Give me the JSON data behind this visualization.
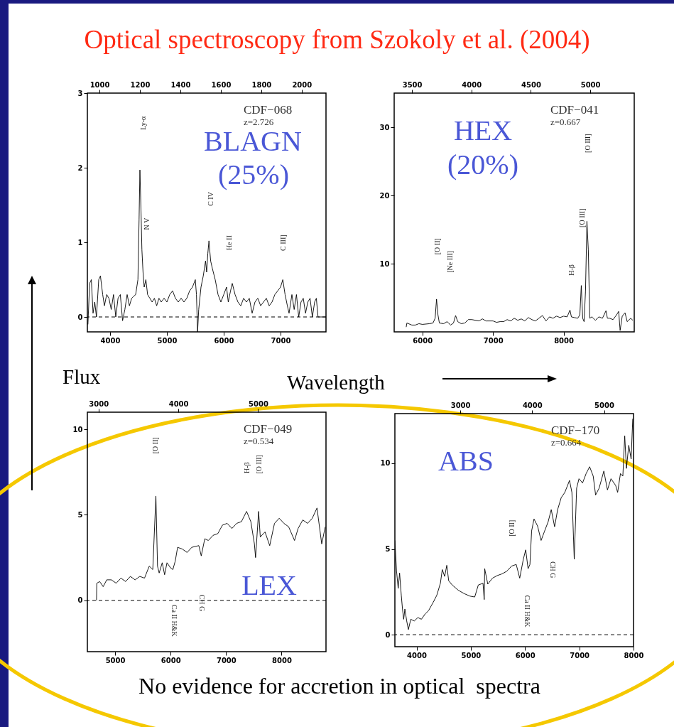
{
  "chart_data": [
    {
      "type": "line",
      "title": "Optical spectroscopy from Szokoly et al. (2004)",
      "xlabel": "Wavelength",
      "ylabel": "Flux",
      "color": "#000000",
      "x": [
        3610,
        3640,
        3670,
        3700,
        3730,
        3760,
        3800,
        3830,
        3870,
        3900,
        3940,
        3980,
        4020,
        4060,
        4100,
        4140,
        4180,
        4220,
        4260,
        4300,
        4340,
        4380,
        4420,
        4450,
        4490,
        4510,
        4525,
        4545,
        4560,
        4580,
        4600,
        4630,
        4660,
        4700,
        4740,
        4780,
        4820,
        4860,
        4900,
        4950,
        5000,
        5050,
        5100,
        5150,
        5200,
        5250,
        5300,
        5350,
        5400,
        5450,
        5500,
        5520,
        5540,
        5560,
        5600,
        5640,
        5680,
        5700,
        5720,
        5740,
        5770,
        5800,
        5850,
        5900,
        5950,
        6000,
        6050,
        6080,
        6120,
        6150,
        6200,
        6250,
        6300,
        6350,
        6400,
        6450,
        6500,
        6550,
        6600,
        6650,
        6700,
        6750,
        6800,
        6850,
        6900,
        6950,
        7000,
        7040,
        7080,
        7120,
        7150,
        7200,
        7240,
        7280,
        7320,
        7360,
        7400,
        7440,
        7480,
        7520,
        7560,
        7600,
        7630,
        7660,
        7700,
        7800
      ],
      "values": [
        -0.1,
        0.45,
        0.5,
        0.05,
        0.2,
        0.0,
        0.5,
        0.55,
        0.3,
        0.15,
        0.3,
        0.25,
        0.1,
        0.3,
        0.0,
        0.25,
        0.3,
        -0.05,
        0.1,
        0.3,
        0.15,
        0.25,
        0.28,
        0.3,
        0.5,
        1.3,
        1.97,
        1.4,
        0.9,
        0.6,
        0.4,
        0.5,
        0.3,
        0.25,
        0.2,
        0.25,
        0.15,
        0.25,
        0.2,
        0.25,
        0.2,
        0.3,
        0.35,
        0.25,
        0.2,
        0.25,
        0.2,
        0.25,
        0.35,
        0.4,
        0.5,
        0.3,
        -0.2,
        0.1,
        0.4,
        0.55,
        0.75,
        0.6,
        0.85,
        1.02,
        0.75,
        0.65,
        0.5,
        0.3,
        0.2,
        0.3,
        0.4,
        0.2,
        0.35,
        0.45,
        0.3,
        0.2,
        0.15,
        0.25,
        0.2,
        0.25,
        0.05,
        0.2,
        0.25,
        0.15,
        0.2,
        0.25,
        0.15,
        0.2,
        0.3,
        0.35,
        0.4,
        0.5,
        0.3,
        0.15,
        0.05,
        0.3,
        0.1,
        0.3,
        0.0,
        0.2,
        0.25,
        0.05,
        0.2,
        0.25,
        0.0,
        0.2,
        0.25,
        0.0,
        0.0,
        0.0
      ],
      "xlim": [
        3600,
        7800
      ],
      "xticks": [
        4000,
        5000,
        6000,
        7000
      ],
      "x2lim": [
        940,
        2120
      ],
      "x2ticks": [
        1000,
        1200,
        1400,
        1600,
        1800,
        2000
      ],
      "ylim": [
        -0.2,
        3
      ],
      "yticks": [
        0,
        1,
        2,
        3
      ],
      "ref_lines": [
        {
          "axis": "y",
          "value": 0,
          "line_style": "dashed"
        }
      ],
      "annotations": [
        "CDF−068",
        "z=2.726",
        "BLAGN",
        "(25%)",
        "Ly-α",
        "N V",
        "C IV",
        "He II",
        "C III]"
      ]
    },
    {
      "type": "line",
      "color": "#000000",
      "x": [
        5770,
        5780,
        5850,
        5900,
        5950,
        6000,
        6100,
        6150,
        6180,
        6200,
        6220,
        6240,
        6300,
        6350,
        6400,
        6440,
        6470,
        6500,
        6550,
        6600,
        6650,
        6700,
        6800,
        6850,
        6900,
        7000,
        7050,
        7100,
        7150,
        7200,
        7250,
        7300,
        7350,
        7400,
        7450,
        7500,
        7550,
        7600,
        7650,
        7700,
        7750,
        7800,
        7850,
        7900,
        7950,
        8000,
        8050,
        8090,
        8110,
        8150,
        8200,
        8230,
        8250,
        8270,
        8290,
        8310,
        8330,
        8350,
        8370,
        8400,
        8450,
        8500,
        8550,
        8600,
        8620,
        8650,
        8700,
        8750,
        8780,
        8800,
        8830,
        8870,
        8900,
        8950,
        8980
      ],
      "values": [
        0.7,
        1.3,
        1.0,
        1.0,
        1.2,
        1.1,
        1.2,
        1.3,
        2.0,
        4.8,
        2.5,
        1.3,
        1.2,
        1.5,
        1.0,
        1.3,
        2.4,
        1.5,
        1.2,
        1.3,
        1.8,
        1.8,
        1.6,
        1.9,
        1.6,
        1.6,
        1.4,
        1.5,
        1.5,
        1.8,
        1.6,
        2.0,
        1.7,
        1.9,
        1.6,
        2.1,
        1.8,
        1.6,
        2.0,
        2.4,
        1.6,
        2.2,
        2.0,
        2.3,
        2.1,
        2.3,
        2.2,
        3.2,
        2.2,
        2.1,
        2.0,
        2.5,
        6.8,
        2.0,
        1.5,
        6.0,
        16.2,
        12,
        2.0,
        2.2,
        1.7,
        2.2,
        2.0,
        3.1,
        2.0,
        2.0,
        1.8,
        2.5,
        3.0,
        0.2,
        2.3,
        2.8,
        1.5,
        2.0,
        1.7
      ],
      "xlim": [
        5600,
        9000
      ],
      "xticks": [
        6000,
        7000,
        8000
      ],
      "x2lim": [
        3350,
        5370
      ],
      "x2ticks": [
        3500,
        4000,
        4500,
        5000
      ],
      "ylim": [
        0,
        35
      ],
      "yticks": [
        10,
        20,
        30
      ],
      "annotations": [
        "CDF−041",
        "z=0.667",
        "HEX",
        "(20%)",
        "[O II]",
        "[Ne III]",
        "H-β",
        "[O III]",
        "[O III]"
      ]
    },
    {
      "type": "line",
      "color": "#000000",
      "x": [
        4665,
        4670,
        4721,
        4785,
        4849,
        4934,
        5019,
        5105,
        5190,
        5275,
        5360,
        5445,
        5530,
        5615,
        5679,
        5735,
        5764,
        5794,
        5849,
        5892,
        5935,
        5999,
        6041,
        6084,
        6126,
        6211,
        6297,
        6382,
        6509,
        6552,
        6616,
        6680,
        6765,
        6850,
        6935,
        7020,
        7105,
        7190,
        7276,
        7369,
        7446,
        7510,
        7531,
        7586,
        7616,
        7701,
        7786,
        7872,
        7957,
        8042,
        8127,
        8233,
        8297,
        8382,
        8468,
        8553,
        8638,
        8723,
        8787
      ],
      "values": [
        0,
        1.0,
        1.1,
        0.8,
        1.2,
        1.2,
        1.0,
        1.3,
        1.1,
        1.4,
        1.2,
        1.4,
        1.3,
        2.0,
        1.8,
        6.1,
        2.0,
        1.6,
        2.2,
        1.5,
        2.2,
        1.9,
        1.8,
        2.3,
        3.1,
        3.0,
        2.8,
        3.1,
        3.2,
        2.6,
        3.6,
        3.5,
        3.8,
        3.9,
        4.4,
        4.5,
        4.2,
        4.5,
        4.6,
        5.2,
        4.6,
        3.3,
        2.5,
        5.2,
        3.7,
        4.0,
        3.2,
        4.5,
        4.8,
        4.5,
        4.3,
        3.5,
        4.2,
        4.7,
        4.5,
        4.8,
        5.4,
        3.3,
        4.3
      ],
      "xlim": [
        4500,
        8800
      ],
      "xticks": [
        5000,
        6000,
        7000,
        8000
      ],
      "x2lim": [
        2860,
        5850
      ],
      "x2ticks": [
        3000,
        4000,
        5000
      ],
      "ylim": [
        -3,
        11
      ],
      "yticks": [
        0,
        5,
        10
      ],
      "ref_lines": [
        {
          "axis": "y",
          "value": 0,
          "line_style": "dashed"
        }
      ],
      "annotations": [
        "CDF−049",
        "z=0.534",
        "LEX",
        "[O II]",
        "H-β",
        "[O III]",
        "Ca II H&K",
        "CH G"
      ]
    },
    {
      "type": "line",
      "color": "#000000",
      "x": [
        3600,
        3631,
        3661,
        3687,
        3718,
        3740,
        3762,
        3784,
        3818,
        3849,
        3893,
        3958,
        4024,
        4089,
        4155,
        4220,
        4308,
        4373,
        4439,
        4474,
        4518,
        4557,
        4592,
        4657,
        4767,
        4876,
        4985,
        5072,
        5138,
        5225,
        5247,
        5256,
        5313,
        5400,
        5487,
        5575,
        5662,
        5750,
        5837,
        5902,
        5968,
        6012,
        6056,
        6090,
        6121,
        6165,
        6230,
        6296,
        6361,
        6427,
        6483,
        6545,
        6601,
        6667,
        6733,
        6820,
        6864,
        6907,
        6951,
        6995,
        7060,
        7126,
        7191,
        7257,
        7301,
        7366,
        7453,
        7519,
        7585,
        7672,
        7707,
        7759,
        7803,
        7838,
        7869,
        7912,
        7956,
        7986
      ],
      "values": [
        5.5,
        3.7,
        2.7,
        3.6,
        2.3,
        1.5,
        0.9,
        1.5,
        0.8,
        0.3,
        0.9,
        0.8,
        1.0,
        0.9,
        1.2,
        1.4,
        1.9,
        2.3,
        3.0,
        3.8,
        3.4,
        4.05,
        3.15,
        2.9,
        2.6,
        2.4,
        2.25,
        2.2,
        2.9,
        3.0,
        2.05,
        3.85,
        2.95,
        3.3,
        3.45,
        3.55,
        3.7,
        4.0,
        4.1,
        3.3,
        4.4,
        4.95,
        3.85,
        4.1,
        6.05,
        6.75,
        6.35,
        5.5,
        6.05,
        6.6,
        7.3,
        6.3,
        7.3,
        8.0,
        8.3,
        9.0,
        8.3,
        4.4,
        8.55,
        9.1,
        8.85,
        9.4,
        9.8,
        9.25,
        8.15,
        8.55,
        9.55,
        8.45,
        9.1,
        8.7,
        8.3,
        9.4,
        9.25,
        11.6,
        9.7,
        11.05,
        10.25,
        12.6
      ],
      "xlim": [
        3600,
        8000
      ],
      "xticks": [
        4000,
        5000,
        6000,
        7000,
        8000
      ],
      "x2lim": [
        2090,
        5410
      ],
      "x2ticks": [
        3000,
        4000,
        5000
      ],
      "ylim": [
        -0.7,
        12.9
      ],
      "yticks": [
        0,
        5,
        10
      ],
      "ref_lines": [
        {
          "axis": "y",
          "value": 0,
          "line_style": "dashed"
        }
      ],
      "annotations": [
        "CDF−170",
        "z=0.664",
        "ABS",
        "[O II]",
        "Ca II H&K",
        "CH G",
        "No evidence for accretion in optical  spectra"
      ]
    }
  ]
}
